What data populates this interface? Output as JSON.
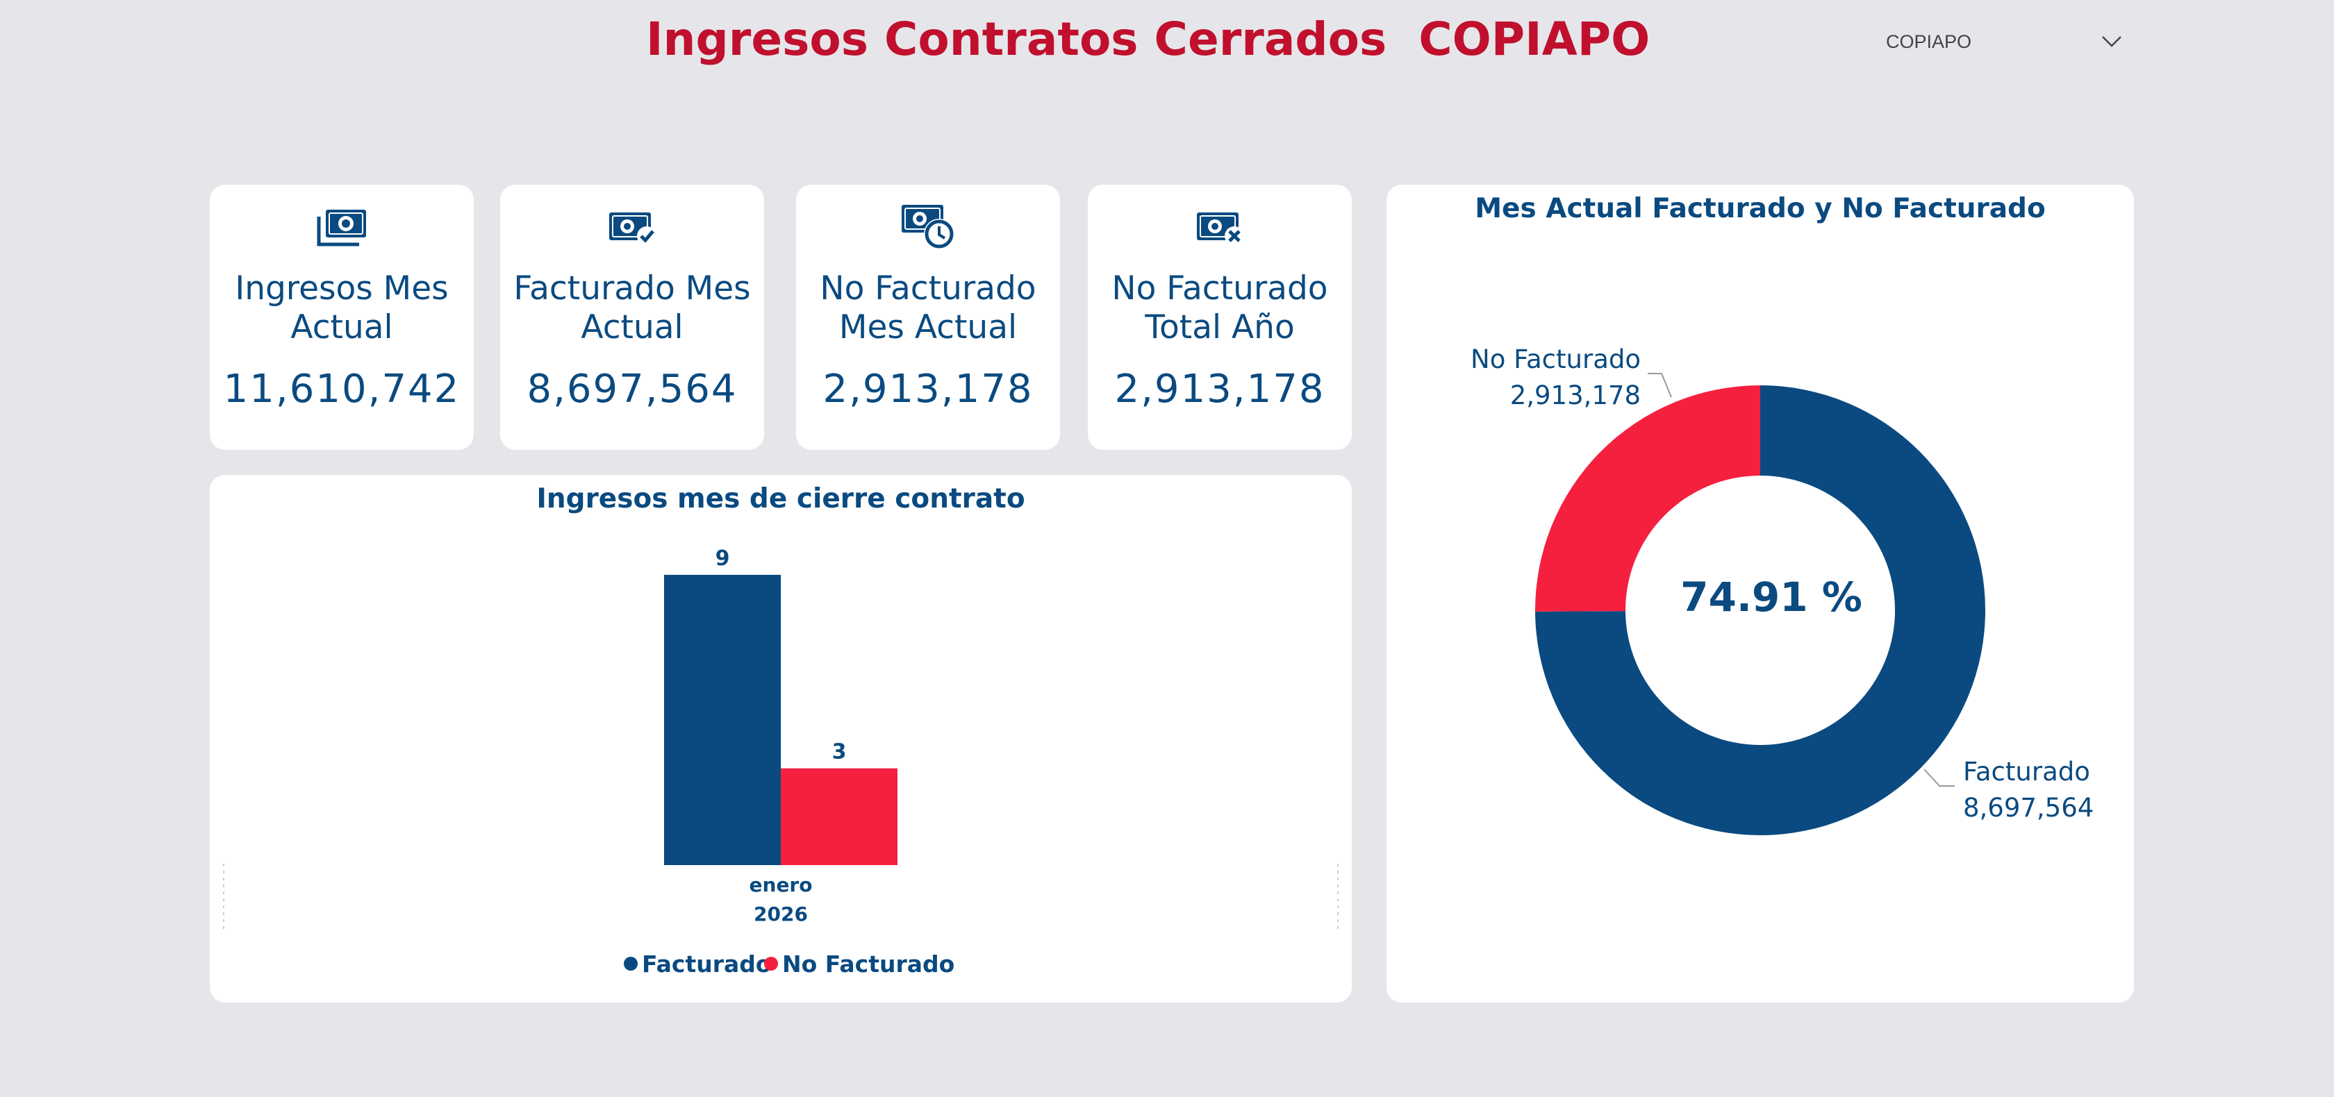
{
  "header": {
    "title": "Ingresos Contratos Cerrados  COPIAPO",
    "slicer_value": "COPIAPO"
  },
  "kpis": [
    {
      "label": "Ingresos Mes Actual",
      "value": "11,610,742",
      "icon": "cash-stack-icon"
    },
    {
      "label": "Facturado Mes Actual",
      "value": "8,697,564",
      "icon": "cash-check-icon"
    },
    {
      "label": "No Facturado Mes Actual",
      "value": "2,913,178",
      "icon": "cash-clock-icon"
    },
    {
      "label": "No Facturado Total Año",
      "value": "2,913,178",
      "icon": "cash-x-icon"
    }
  ],
  "colors": {
    "primary": "#0a4a80",
    "accent": "#f5203e",
    "title": "#c0102d",
    "background": "#e6e6ea"
  },
  "chart_data": [
    {
      "type": "bar",
      "title": "Ingresos mes de cierre contrato",
      "categories": [
        "enero"
      ],
      "category_year": "2026",
      "series": [
        {
          "name": "Facturado",
          "values": [
            9
          ]
        },
        {
          "name": "No Facturado",
          "values": [
            3
          ]
        }
      ],
      "data_labels": [
        "9",
        "3"
      ],
      "ylim": [
        0,
        9.3
      ],
      "legend": "bottom-center"
    },
    {
      "type": "pie",
      "title": "Mes Actual Facturado y No Facturado",
      "labels": [
        "Facturado",
        "No Facturado"
      ],
      "values": [
        8697564,
        2913178
      ],
      "value_labels": [
        "8,697,564",
        "2,913,178"
      ],
      "center_label": "74.91 %"
    }
  ]
}
